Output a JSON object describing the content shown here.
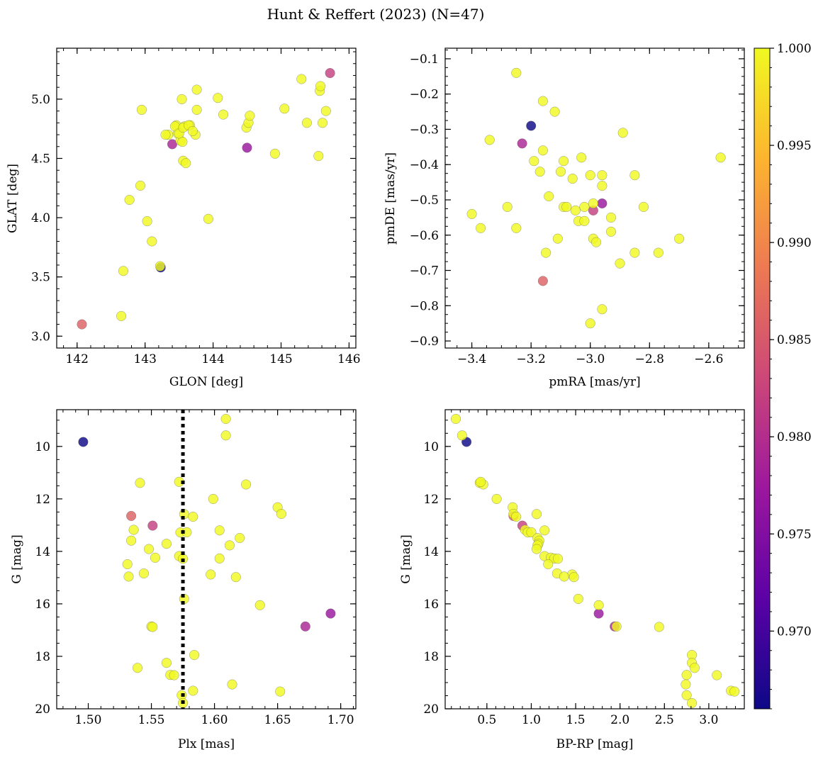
{
  "title": "Hunt & Reffert (2023) (N=47)",
  "colorbar": {
    "min": 0.966,
    "max": 1.0,
    "ticks": [
      0.97,
      0.975,
      0.98,
      0.985,
      0.99,
      0.995,
      1.0
    ],
    "tick_labels": [
      "0.970",
      "0.975",
      "0.980",
      "0.985",
      "0.990",
      "0.995",
      "1.000"
    ],
    "colormap": "plasma",
    "stops": [
      "#0d0887",
      "#5c01a6",
      "#9c179e",
      "#cc4778",
      "#ed7953",
      "#fdb42f",
      "#f0f921"
    ]
  },
  "panels": [
    {
      "id": "top-left",
      "xlabel": "GLON [deg]",
      "ylabel": "GLAT [deg]",
      "xlim": [
        141.7,
        146.1
      ],
      "ylim": [
        2.9,
        5.43
      ],
      "y_inverted": false,
      "xticks": [
        142,
        143,
        144,
        145,
        146
      ],
      "xtick_labels": [
        "142",
        "143",
        "144",
        "145",
        "146"
      ],
      "xminor": 0.2,
      "yticks": [
        3.0,
        3.5,
        4.0,
        4.5,
        5.0
      ],
      "ytick_labels": [
        "3.0",
        "3.5",
        "4.0",
        "4.5",
        "5.0"
      ],
      "yminor": 0.1
    },
    {
      "id": "top-right",
      "xlabel": "pmRA [mas/yr]",
      "ylabel": "pmDE [mas/yr]",
      "xlim": [
        -3.49,
        -2.48
      ],
      "ylim": [
        -0.92,
        -0.07
      ],
      "y_inverted": false,
      "xticks": [
        -3.4,
        -3.2,
        -3.0,
        -2.8,
        -2.6
      ],
      "xtick_labels": [
        "−3.4",
        "−3.2",
        "−3.0",
        "−2.8",
        "−2.6"
      ],
      "xminor": 0.05,
      "yticks": [
        -0.9,
        -0.8,
        -0.7,
        -0.6,
        -0.5,
        -0.4,
        -0.3,
        -0.2,
        -0.1
      ],
      "ytick_labels": [
        "−0.9",
        "−0.8",
        "−0.7",
        "−0.6",
        "−0.5",
        "−0.4",
        "−0.3",
        "−0.2",
        "−0.1"
      ],
      "yminor": 0.025
    },
    {
      "id": "bottom-left",
      "xlabel": "Plx [mas]",
      "ylabel": "G [mag]",
      "xlim": [
        1.475,
        1.712
      ],
      "ylim": [
        8.6,
        20.0
      ],
      "y_inverted": true,
      "xticks": [
        1.5,
        1.55,
        1.6,
        1.65,
        1.7
      ],
      "xtick_labels": [
        "1.50",
        "1.55",
        "1.60",
        "1.65",
        "1.70"
      ],
      "xminor": 0.01,
      "yticks": [
        10,
        12,
        14,
        16,
        18,
        20
      ],
      "ytick_labels": [
        "10",
        "12",
        "14",
        "16",
        "18",
        "20"
      ],
      "yminor": 0.5,
      "vline": 1.575
    },
    {
      "id": "bottom-right",
      "xlabel": "BP-RP [mag]",
      "ylabel": "G [mag]",
      "xlim": [
        0.03,
        3.4
      ],
      "ylim": [
        8.6,
        20.0
      ],
      "y_inverted": true,
      "xticks": [
        0.5,
        1.0,
        1.5,
        2.0,
        2.5,
        3.0
      ],
      "xtick_labels": [
        "0.5",
        "1.0",
        "1.5",
        "2.0",
        "2.5",
        "3.0"
      ],
      "xminor": 0.1,
      "yticks": [
        10,
        12,
        14,
        16,
        18,
        20
      ],
      "ytick_labels": [
        "10",
        "12",
        "14",
        "16",
        "18",
        "20"
      ],
      "yminor": 0.5
    }
  ],
  "chart_data": {
    "type": "scatter",
    "title": "Hunt & Reffert (2023) (N=47)",
    "color_variable_range": [
      0.966,
      1.0
    ],
    "columns": [
      "GLON",
      "GLAT",
      "pmRA",
      "pmDE",
      "Plx",
      "G",
      "BP_RP",
      "prob"
    ],
    "stars": [
      [
        142.07,
        3.1,
        -3.16,
        -0.73,
        1.534,
        12.65,
        0.8,
        0.986
      ],
      [
        144.5,
        4.59,
        -2.96,
        -0.51,
        1.692,
        16.37,
        1.76,
        0.977
      ],
      [
        143.4,
        4.62,
        -3.23,
        -0.34,
        1.672,
        16.86,
        1.94,
        0.979
      ],
      [
        145.72,
        5.22,
        -2.99,
        -0.53,
        1.551,
        13.02,
        0.9,
        0.982
      ],
      [
        143.23,
        3.58,
        -3.2,
        -0.29,
        1.496,
        9.83,
        0.27,
        0.966
      ],
      [
        142.65,
        3.17,
        -3.25,
        -0.14,
        1.609,
        8.95,
        0.15,
        1.0
      ],
      [
        142.68,
        3.55,
        -3.16,
        -0.22,
        1.609,
        9.58,
        0.22,
        1.0
      ],
      [
        142.77,
        4.15,
        -3.4,
        -0.54,
        1.541,
        11.39,
        0.42,
        1.0
      ],
      [
        142.93,
        4.27,
        -3.37,
        -0.58,
        1.625,
        11.45,
        0.46,
        1.0
      ],
      [
        142.95,
        4.91,
        -3.34,
        -0.33,
        1.572,
        11.35,
        0.43,
        1.0
      ],
      [
        143.03,
        3.97,
        -3.28,
        -0.52,
        1.599,
        12.0,
        0.61,
        1.0
      ],
      [
        143.1,
        3.8,
        -3.25,
        -0.58,
        1.65,
        12.32,
        0.79,
        1.0
      ],
      [
        143.22,
        3.59,
        -3.19,
        -0.39,
        1.653,
        12.57,
        0.8,
        1.0
      ],
      [
        143.34,
        4.7,
        -3.17,
        -0.42,
        1.576,
        12.58,
        1.06,
        1.0
      ],
      [
        143.46,
        4.78,
        -3.16,
        -0.36,
        1.583,
        12.68,
        0.83,
        1.0
      ],
      [
        143.48,
        4.71,
        -3.14,
        -0.49,
        1.536,
        13.18,
        0.93,
        1.0
      ],
      [
        143.52,
        4.65,
        -3.12,
        -0.25,
        1.573,
        13.28,
        0.96,
        1.0
      ],
      [
        143.54,
        5.0,
        -3.11,
        -0.61,
        1.578,
        13.27,
        1.0,
        1.0
      ],
      [
        143.55,
        4.64,
        -3.1,
        -0.42,
        1.604,
        13.2,
        1.15,
        1.0
      ],
      [
        143.56,
        4.48,
        -3.09,
        -0.39,
        1.62,
        13.49,
        1.07,
        1.0
      ],
      [
        143.58,
        4.77,
        -3.09,
        -0.52,
        1.534,
        13.59,
        1.09,
        1.0
      ],
      [
        143.6,
        4.46,
        -3.06,
        -0.44,
        1.562,
        13.71,
        1.08,
        1.0
      ],
      [
        143.66,
        4.78,
        -3.04,
        -0.56,
        1.612,
        13.77,
        1.07,
        1.0
      ],
      [
        143.74,
        4.7,
        -3.03,
        -0.38,
        1.548,
        13.91,
        1.06,
        1.0
      ],
      [
        143.76,
        5.08,
        -3.02,
        -0.52,
        1.572,
        14.18,
        1.15,
        1.0
      ],
      [
        143.76,
        4.91,
        -3.02,
        -0.56,
        1.553,
        14.24,
        1.22,
        1.0
      ],
      [
        143.93,
        3.99,
        -3.0,
        -0.43,
        1.604,
        14.27,
        1.26,
        1.0
      ],
      [
        144.07,
        5.01,
        -2.99,
        -0.51,
        1.575,
        14.28,
        1.3,
        1.0
      ],
      [
        144.15,
        4.87,
        -2.99,
        -0.61,
        1.531,
        14.49,
        1.19,
        1.0
      ],
      [
        144.49,
        4.76,
        -2.98,
        -0.62,
        1.544,
        14.84,
        1.29,
        1.0
      ],
      [
        144.52,
        4.8,
        -2.96,
        -0.43,
        1.597,
        14.88,
        1.46,
        1.0
      ],
      [
        144.54,
        4.86,
        -2.96,
        -0.46,
        1.532,
        14.96,
        1.37,
        1.0
      ],
      [
        144.91,
        4.54,
        -2.96,
        -0.81,
        1.617,
        14.98,
        1.48,
        1.0
      ],
      [
        145.05,
        4.92,
        -2.93,
        -0.55,
        1.576,
        15.81,
        1.53,
        1.0
      ],
      [
        145.3,
        5.17,
        -2.93,
        -0.59,
        1.636,
        16.05,
        1.76,
        1.0
      ],
      [
        145.38,
        4.8,
        -2.9,
        -0.68,
        1.55,
        16.86,
        1.96,
        1.0
      ],
      [
        145.55,
        4.52,
        -2.89,
        -0.31,
        1.551,
        16.88,
        2.44,
        1.0
      ],
      [
        145.57,
        5.07,
        -2.85,
        -0.43,
        1.584,
        17.95,
        2.81,
        1.0
      ],
      [
        145.58,
        5.11,
        -2.85,
        -0.65,
        1.562,
        18.25,
        2.81,
        1.0
      ],
      [
        145.61,
        4.8,
        -2.82,
        -0.52,
        1.539,
        18.44,
        2.84,
        1.0
      ],
      [
        145.66,
        4.9,
        -2.77,
        -0.65,
        1.565,
        18.71,
        2.75,
        1.0
      ],
      [
        143.44,
        4.77,
        -2.7,
        -0.61,
        1.568,
        18.72,
        3.09,
        1.0
      ],
      [
        143.5,
        4.71,
        -2.56,
        -0.38,
        1.614,
        19.07,
        2.74,
        1.0
      ],
      [
        143.56,
        4.76,
        -3.0,
        -0.85,
        1.583,
        19.31,
        3.25,
        1.0
      ],
      [
        143.64,
        4.78,
        -3.05,
        -0.53,
        1.652,
        19.34,
        3.29,
        1.0
      ],
      [
        143.7,
        4.73,
        -3.15,
        -0.65,
        1.574,
        19.48,
        2.75,
        1.0
      ],
      [
        143.3,
        4.7,
        -3.08,
        -0.52,
        1.575,
        19.78,
        2.81,
        1.0
      ]
    ]
  }
}
